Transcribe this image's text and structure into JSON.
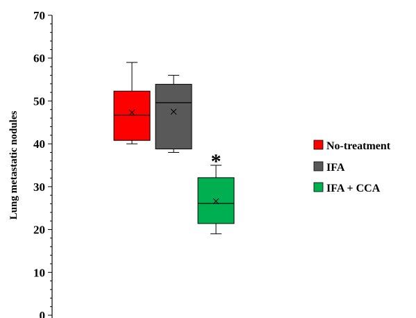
{
  "chart_data": {
    "type": "box",
    "ylabel": "Lung metastatic nodules",
    "ylim": [
      0,
      70
    ],
    "yticks": [
      0,
      10,
      20,
      30,
      40,
      50,
      60,
      70
    ],
    "legend_position": "right",
    "series": [
      {
        "name": "No-treatment",
        "color": "#ff0000",
        "min": 40,
        "q1": 40.8,
        "median": 46.7,
        "q3": 52.3,
        "max": 59,
        "mean": 47.3
      },
      {
        "name": "IFA",
        "color": "#595959",
        "min": 38,
        "q1": 38.8,
        "median": 49.6,
        "q3": 53.9,
        "max": 56,
        "mean": 47.5
      },
      {
        "name": "IFA + CCA",
        "color": "#00b050",
        "min": 19,
        "q1": 21.4,
        "median": 26.1,
        "q3": 32.1,
        "max": 35,
        "mean": 26.6
      }
    ],
    "annotations": [
      {
        "text": "*",
        "series": "IFA + CCA"
      }
    ]
  }
}
